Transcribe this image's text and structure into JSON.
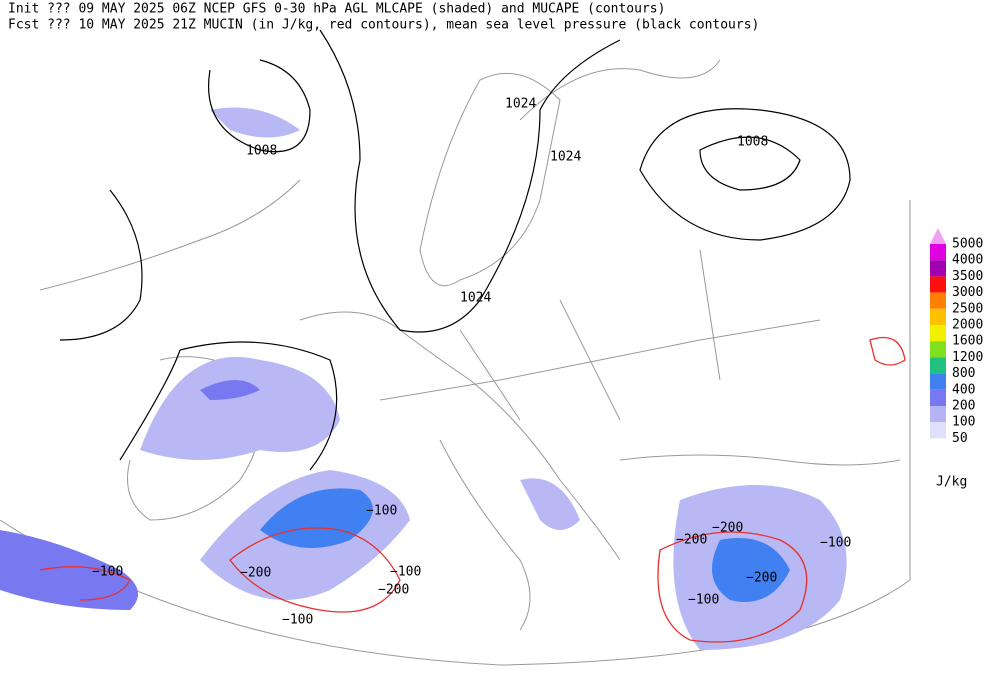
{
  "header": {
    "line1": "Init  ??? 09 MAY 2025 06Z  NCEP GFS 0-30 hPa AGL MLCAPE (shaded) and MUCAPE (contours)",
    "line2": "Fcst ??? 10 MAY 2025 21Z  MUCIN (in J/kg, red contours), mean sea level pressure (black contours)"
  },
  "pressure_labels": [
    "1024",
    "1024",
    "1024",
    "1008",
    "1008"
  ],
  "cin_labels": [
    "−100",
    "−100",
    "−100",
    "−100",
    "−100",
    "−100",
    "−200",
    "−200",
    "−200",
    "−200",
    "−200"
  ],
  "colorbar": {
    "unit": "J/kg",
    "levels": [
      {
        "value": 5000,
        "color": "#f0a0f0"
      },
      {
        "value": 4000,
        "color": "#e000e0"
      },
      {
        "value": 3500,
        "color": "#a000b0"
      },
      {
        "value": 3000,
        "color": "#ff1010"
      },
      {
        "value": 2500,
        "color": "#ff8000"
      },
      {
        "value": 2000,
        "color": "#ffc000"
      },
      {
        "value": 1600,
        "color": "#f0f000"
      },
      {
        "value": 1200,
        "color": "#80e020"
      },
      {
        "value": 800,
        "color": "#20c080"
      },
      {
        "value": 400,
        "color": "#4080f0"
      },
      {
        "value": 200,
        "color": "#7878f0"
      },
      {
        "value": 100,
        "color": "#b4b4f4"
      },
      {
        "value": 50,
        "color": "#e0e0fa"
      }
    ]
  }
}
